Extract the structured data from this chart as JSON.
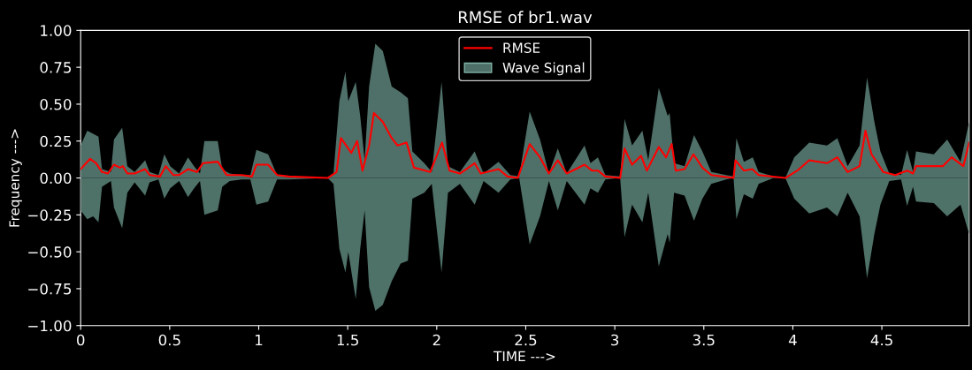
{
  "chart_data": {
    "type": "line",
    "title": "RMSE of br1.wav",
    "xlabel": "TIME --->",
    "ylabel": "Frequency --->",
    "xlim": [
      0,
      4.99
    ],
    "xticks": [
      0,
      0.5,
      1,
      1.5,
      2,
      2.5,
      3,
      3.5,
      4,
      4.5
    ],
    "ylim": [
      -1,
      1
    ],
    "yticks": [
      {
        "value": -1,
        "label": "−1.00"
      },
      {
        "value": -0.75,
        "label": "−0.75"
      },
      {
        "value": -0.5,
        "label": "−0.50"
      },
      {
        "value": -0.25,
        "label": "−0.25"
      },
      {
        "value": 0,
        "label": "0.00"
      },
      {
        "value": 0.25,
        "label": "0.25"
      },
      {
        "value": 0.5,
        "label": "0.50"
      },
      {
        "value": 0.75,
        "label": "0.75"
      },
      {
        "value": 1,
        "label": "1.00"
      }
    ],
    "grid": false,
    "legend": "top",
    "series": [
      {
        "name": "RMSE",
        "color": "#ff0000",
        "x": [
          0,
          0.053,
          0.087,
          0.12,
          0.153,
          0.187,
          0.22,
          0.237,
          0.262,
          0.303,
          0.362,
          0.387,
          0.445,
          0.478,
          0.52,
          0.553,
          0.603,
          0.653,
          0.687,
          0.77,
          0.82,
          0.903,
          0.962,
          0.987,
          1.053,
          1.103,
          1.17,
          1.387,
          1.437,
          1.462,
          1.52,
          1.553,
          1.583,
          1.62,
          1.647,
          1.697,
          1.747,
          1.78,
          1.83,
          1.872,
          1.963,
          2.03,
          2.072,
          2.13,
          2.213,
          2.247,
          2.347,
          2.397,
          2.455,
          2.522,
          2.58,
          2.63,
          2.68,
          2.73,
          2.83,
          2.872,
          2.905,
          2.947,
          3.03,
          3.055,
          3.097,
          3.147,
          3.18,
          3.247,
          3.288,
          3.32,
          3.342,
          3.392,
          3.442,
          3.492,
          3.542,
          3.667,
          3.678,
          3.725,
          3.772,
          3.808,
          3.958,
          4.025,
          4.092,
          4.192,
          4.25,
          4.308,
          4.375,
          4.408,
          4.442,
          4.508,
          4.575,
          4.642,
          4.675,
          4.692,
          4.842,
          4.892,
          4.958,
          4.99
        ],
        "values": [
          0.06,
          0.13,
          0.1,
          0.04,
          0.03,
          0.09,
          0.07,
          0.08,
          0.03,
          0.03,
          0.06,
          0.02,
          0.01,
          0.08,
          0.02,
          0.02,
          0.06,
          0.04,
          0.1,
          0.11,
          0.02,
          0.02,
          0.01,
          0.09,
          0.09,
          0.02,
          0.01,
          0.0,
          0.04,
          0.27,
          0.17,
          0.25,
          0.05,
          0.22,
          0.44,
          0.38,
          0.27,
          0.22,
          0.24,
          0.07,
          0.04,
          0.24,
          0.05,
          0.03,
          0.1,
          0.03,
          0.06,
          0.01,
          0.0,
          0.23,
          0.14,
          0.03,
          0.12,
          0.03,
          0.09,
          0.05,
          0.05,
          0.01,
          0.0,
          0.2,
          0.09,
          0.15,
          0.05,
          0.21,
          0.14,
          0.23,
          0.05,
          0.06,
          0.16,
          0.07,
          0.02,
          0.0,
          0.12,
          0.05,
          0.06,
          0.02,
          0.0,
          0.05,
          0.12,
          0.1,
          0.14,
          0.04,
          0.08,
          0.32,
          0.16,
          0.04,
          0.02,
          0.05,
          0.03,
          0.08,
          0.08,
          0.14,
          0.08,
          0.24
        ]
      },
      {
        "name": "Wave Signal",
        "type": "area",
        "color": "#4f7068",
        "x": [
          0,
          0.037,
          0.07,
          0.1,
          0.12,
          0.17,
          0.187,
          0.233,
          0.262,
          0.303,
          0.362,
          0.387,
          0.437,
          0.47,
          0.503,
          0.553,
          0.603,
          0.637,
          0.67,
          0.695,
          0.77,
          0.795,
          0.837,
          0.903,
          0.953,
          0.987,
          1.053,
          1.103,
          1.17,
          1.387,
          1.42,
          1.453,
          1.487,
          1.503,
          1.545,
          1.57,
          1.595,
          1.62,
          1.655,
          1.697,
          1.747,
          1.797,
          1.838,
          1.863,
          1.93,
          1.972,
          2.027,
          2.063,
          2.13,
          2.213,
          2.263,
          2.347,
          2.413,
          2.463,
          2.522,
          2.58,
          2.63,
          2.68,
          2.73,
          2.83,
          2.863,
          2.905,
          2.947,
          3.03,
          3.055,
          3.097,
          3.155,
          3.188,
          3.247,
          3.297,
          3.308,
          3.333,
          3.392,
          3.445,
          3.492,
          3.542,
          3.625,
          3.667,
          3.683,
          3.725,
          3.775,
          3.808,
          3.892,
          3.958,
          4.008,
          4.092,
          4.192,
          4.25,
          4.308,
          4.375,
          4.417,
          4.458,
          4.492,
          4.542,
          4.608,
          4.642,
          4.675,
          4.692,
          4.792,
          4.867,
          4.942,
          4.99
        ],
        "values": [
          0.22,
          0.32,
          0.3,
          0.28,
          0.06,
          0.04,
          0.26,
          0.34,
          0.08,
          0.04,
          0.12,
          0.04,
          0.02,
          0.16,
          0.08,
          0.03,
          0.14,
          0.08,
          0.03,
          0.25,
          0.25,
          0.06,
          0.03,
          0.02,
          0.02,
          0.19,
          0.16,
          0.02,
          0.01,
          0.0,
          0.03,
          0.52,
          0.72,
          0.52,
          0.65,
          0.42,
          0.12,
          0.62,
          0.91,
          0.86,
          0.62,
          0.58,
          0.54,
          0.18,
          0.1,
          0.04,
          0.65,
          0.08,
          0.04,
          0.18,
          0.03,
          0.11,
          0.02,
          0.01,
          0.45,
          0.26,
          0.03,
          0.2,
          0.03,
          0.22,
          0.1,
          0.14,
          0.02,
          0.01,
          0.4,
          0.22,
          0.32,
          0.12,
          0.61,
          0.42,
          0.44,
          0.1,
          0.08,
          0.29,
          0.18,
          0.04,
          0.02,
          0.01,
          0.27,
          0.11,
          0.14,
          0.04,
          0.01,
          0.0,
          0.14,
          0.24,
          0.22,
          0.27,
          0.08,
          0.22,
          0.68,
          0.38,
          0.18,
          0.03,
          0.02,
          0.19,
          0.04,
          0.18,
          0.16,
          0.26,
          0.11,
          0.38
        ]
      },
      {
        "type": "area",
        "color": "#4e7168",
        "x": [
          0,
          0.037,
          0.07,
          0.1,
          0.12,
          0.17,
          0.187,
          0.233,
          0.262,
          0.303,
          0.362,
          0.387,
          0.437,
          0.47,
          0.503,
          0.553,
          0.603,
          0.637,
          0.67,
          0.695,
          0.77,
          0.795,
          0.837,
          0.903,
          0.953,
          0.987,
          1.053,
          1.103,
          1.17,
          1.387,
          1.42,
          1.453,
          1.487,
          1.503,
          1.545,
          1.57,
          1.595,
          1.62,
          1.655,
          1.697,
          1.747,
          1.797,
          1.838,
          1.863,
          1.93,
          1.972,
          2.027,
          2.063,
          2.13,
          2.213,
          2.263,
          2.347,
          2.413,
          2.463,
          2.522,
          2.58,
          2.63,
          2.68,
          2.73,
          2.83,
          2.863,
          2.905,
          2.947,
          3.03,
          3.055,
          3.097,
          3.155,
          3.188,
          3.247,
          3.297,
          3.308,
          3.333,
          3.392,
          3.445,
          3.492,
          3.542,
          3.625,
          3.667,
          3.683,
          3.725,
          3.775,
          3.808,
          3.892,
          3.958,
          4.008,
          4.092,
          4.192,
          4.25,
          4.308,
          4.375,
          4.417,
          4.458,
          4.492,
          4.542,
          4.608,
          4.642,
          4.675,
          4.692,
          4.792,
          4.867,
          4.942,
          4.99
        ],
        "values": [
          -0.22,
          -0.28,
          -0.26,
          -0.3,
          -0.06,
          -0.02,
          -0.2,
          -0.34,
          -0.1,
          -0.03,
          -0.12,
          -0.03,
          -0.01,
          -0.14,
          -0.07,
          -0.02,
          -0.13,
          -0.07,
          -0.02,
          -0.25,
          -0.22,
          -0.06,
          -0.02,
          -0.01,
          -0.01,
          -0.18,
          -0.16,
          -0.01,
          -0.01,
          0.0,
          -0.04,
          -0.48,
          -0.64,
          -0.5,
          -0.82,
          -0.48,
          -0.22,
          -0.74,
          -0.9,
          -0.86,
          -0.7,
          -0.58,
          -0.56,
          -0.14,
          -0.1,
          -0.04,
          -0.64,
          -0.1,
          -0.04,
          -0.18,
          -0.02,
          -0.1,
          -0.01,
          0.0,
          -0.45,
          -0.26,
          -0.02,
          -0.22,
          -0.02,
          -0.18,
          -0.07,
          -0.1,
          -0.01,
          0.0,
          -0.4,
          -0.18,
          -0.3,
          -0.1,
          -0.6,
          -0.38,
          -0.44,
          -0.1,
          -0.12,
          -0.29,
          -0.14,
          -0.04,
          -0.01,
          0.0,
          -0.28,
          -0.11,
          -0.14,
          -0.04,
          0.0,
          0.0,
          -0.14,
          -0.24,
          -0.2,
          -0.26,
          -0.1,
          -0.26,
          -0.68,
          -0.38,
          -0.18,
          -0.02,
          -0.01,
          -0.19,
          -0.06,
          -0.16,
          -0.17,
          -0.26,
          -0.18,
          -0.38
        ]
      }
    ]
  }
}
